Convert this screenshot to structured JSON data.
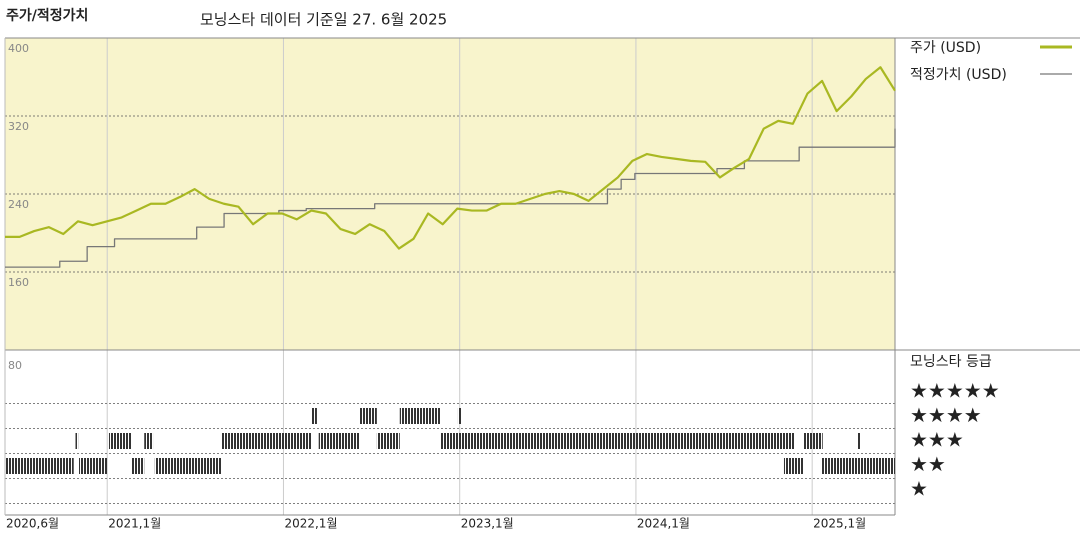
{
  "chart_data": {
    "type": "line",
    "title": "주가/적정가치",
    "subtitle": "모닝스타 데이터 기준일 27. 6월 2025",
    "xlim": [
      2020.42,
      2025.47
    ],
    "xticks": [
      {
        "value": 2020.42,
        "label": "2020,6월"
      },
      {
        "value": 2021,
        "label": "2021,1월"
      },
      {
        "value": 2022,
        "label": "2022,1월"
      },
      {
        "value": 2023,
        "label": "2023,1월"
      },
      {
        "value": 2024,
        "label": "2024,1월"
      },
      {
        "value": 2025,
        "label": "2025,1월"
      }
    ],
    "ylim": [
      80,
      400
    ],
    "yticks": [
      160,
      240,
      320,
      400
    ],
    "grid": true,
    "series": [
      {
        "name": "주가 (USD)",
        "color": "#a9b822",
        "step": false,
        "values": [
          196,
          196,
          202,
          206,
          199,
          212,
          208,
          212,
          216,
          223,
          230,
          230,
          237,
          245,
          235,
          230,
          227,
          209,
          220,
          220,
          214,
          223,
          220,
          204,
          199,
          209,
          202,
          184,
          194,
          220,
          209,
          225,
          223,
          223,
          230,
          230,
          235,
          240,
          243,
          240,
          233,
          245,
          257,
          274,
          281,
          278,
          276,
          274,
          273,
          257,
          267,
          276,
          307,
          315,
          312,
          343,
          356,
          325,
          340,
          358,
          370,
          346
        ]
      },
      {
        "name": "적정가치 (USD)",
        "color": "#777777",
        "step": true,
        "values": [
          165,
          165,
          165,
          165,
          171,
          171,
          186,
          186,
          194,
          194,
          194,
          194,
          194,
          194,
          206,
          206,
          220,
          220,
          220,
          220,
          223,
          223,
          225,
          225,
          225,
          225,
          225,
          230,
          230,
          230,
          230,
          230,
          230,
          230,
          230,
          230,
          230,
          230,
          230,
          230,
          230,
          230,
          230,
          230,
          245,
          255,
          261,
          261,
          261,
          261,
          261,
          261,
          266,
          266,
          274,
          274,
          274,
          274,
          288,
          288,
          288,
          288,
          288,
          288,
          288,
          307
        ]
      }
    ],
    "rating_panel": {
      "title": "모닝스타 등급",
      "top_label": "80",
      "star_labels": [
        "★★★★★",
        "★★★★",
        "★★★",
        "★★",
        "★"
      ],
      "periods": [
        {
          "stars": 2,
          "from": 2020.42,
          "to": 2020.81
        },
        {
          "stars": 3,
          "from": 2020.82,
          "to": 2020.835
        },
        {
          "stars": 2,
          "from": 2020.84,
          "to": 2021.0
        },
        {
          "stars": 3,
          "from": 2021.01,
          "to": 2021.14
        },
        {
          "stars": 2,
          "from": 2021.14,
          "to": 2021.21
        },
        {
          "stars": 3,
          "from": 2021.21,
          "to": 2021.26
        },
        {
          "stars": 2,
          "from": 2021.27,
          "to": 2021.65
        },
        {
          "stars": 3,
          "from": 2021.65,
          "to": 2022.16
        },
        {
          "stars": 4,
          "from": 2022.16,
          "to": 2022.19
        },
        {
          "stars": 3,
          "from": 2022.2,
          "to": 2022.43
        },
        {
          "stars": 4,
          "from": 2022.43,
          "to": 2022.53
        },
        {
          "stars": 3,
          "from": 2022.53,
          "to": 2022.66
        },
        {
          "stars": 4,
          "from": 2022.66,
          "to": 2022.89
        },
        {
          "stars": 3,
          "from": 2022.89,
          "to": 2024.9
        },
        {
          "stars": 4,
          "from": 2022.99,
          "to": 2023.01
        },
        {
          "stars": 2,
          "from": 2024.84,
          "to": 2024.95
        },
        {
          "stars": 3,
          "from": 2024.95,
          "to": 2025.06
        },
        {
          "stars": 2,
          "from": 2025.05,
          "to": 2025.47
        },
        {
          "stars": 3,
          "from": 2025.26,
          "to": 2025.27
        }
      ]
    }
  }
}
